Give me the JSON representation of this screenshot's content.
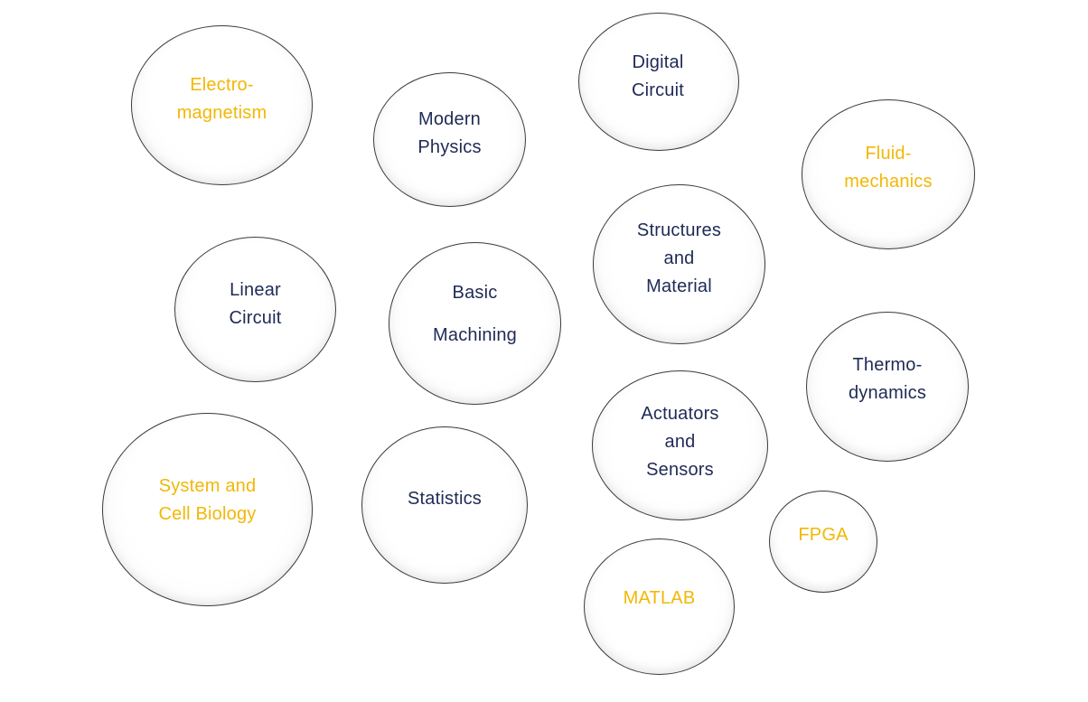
{
  "colors": {
    "navy": "#1f2a56",
    "gold": "#f2b705"
  },
  "bubbles": [
    {
      "id": "electromagnetism",
      "lines": [
        "Electro-",
        "magnetism"
      ],
      "color": "gold"
    },
    {
      "id": "modern-physics",
      "lines": [
        "Modern",
        "Physics"
      ],
      "color": "navy"
    },
    {
      "id": "digital-circuit",
      "lines": [
        "Digital",
        "Circuit"
      ],
      "color": "navy"
    },
    {
      "id": "fluid-mechanics",
      "lines": [
        "Fluid-",
        "mechanics"
      ],
      "color": "gold"
    },
    {
      "id": "structures-and-material",
      "lines": [
        "Structures",
        "and",
        "Material"
      ],
      "color": "navy"
    },
    {
      "id": "linear-circuit",
      "lines": [
        "Linear",
        "Circuit"
      ],
      "color": "navy"
    },
    {
      "id": "basic-machining",
      "lines": [
        "Basic",
        "Machining"
      ],
      "color": "navy"
    },
    {
      "id": "thermodynamics",
      "lines": [
        "Thermo-",
        "dynamics"
      ],
      "color": "navy"
    },
    {
      "id": "actuators-and-sensors",
      "lines": [
        "Actuators",
        "and",
        "Sensors"
      ],
      "color": "navy"
    },
    {
      "id": "system-and-cell-biology",
      "lines": [
        "System and",
        "Cell Biology"
      ],
      "color": "gold"
    },
    {
      "id": "statistics",
      "lines": [
        "Statistics"
      ],
      "color": "navy"
    },
    {
      "id": "fpga",
      "lines": [
        "FPGA"
      ],
      "color": "gold"
    },
    {
      "id": "matlab",
      "lines": [
        "MATLAB"
      ],
      "color": "gold"
    }
  ]
}
